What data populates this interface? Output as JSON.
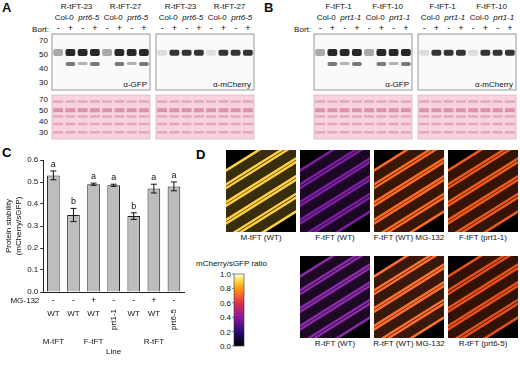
{
  "panel_letters": [
    "A",
    "B",
    "C",
    "D"
  ],
  "blots": [
    {
      "lines": [
        "R-tFT-23",
        "R-tFT-27"
      ],
      "genotypes": [
        "Col-0",
        "prt6-5"
      ],
      "treatment_label": "Bort:",
      "treatments": [
        "-",
        "+"
      ],
      "antibodies": [
        "α-GFP",
        "α-mCherry"
      ],
      "markers": [
        70,
        50,
        40,
        30
      ]
    },
    {
      "lines": [
        "F-tFT-1",
        "F-tFT-10"
      ],
      "genotypes": [
        "Col-0",
        "prt1-1"
      ],
      "treatment_label": "Bort:",
      "treatments": [
        "-",
        "+"
      ],
      "antibodies": [
        "α-GFP",
        "α-mCherry"
      ]
    }
  ],
  "chart_data": {
    "type": "bar",
    "categories": [
      "WT",
      "WT",
      "WT",
      "prt1-1",
      "WT",
      "WT",
      "prt6-5"
    ],
    "groups": [
      "M-tFT",
      "F-tFT",
      "F-tFT",
      "F-tFT",
      "R-tFT",
      "R-tFT",
      "R-tFT"
    ],
    "treatment_label": "MG-132",
    "treatments": [
      "-",
      "-",
      "+",
      "-",
      "-",
      "+",
      "-"
    ],
    "x_label": "Line",
    "y_label": "Protein stability (mCherry/sGFP)",
    "values": [
      0.53,
      0.35,
      0.49,
      0.485,
      0.345,
      0.47,
      0.48
    ],
    "errors": [
      0.02,
      0.03,
      0.005,
      0.005,
      0.015,
      0.02,
      0.02
    ],
    "significance": [
      "a",
      "b",
      "a",
      "a",
      "b",
      "a",
      "a"
    ],
    "color": "#bdbdbd",
    "ylim": [
      0,
      0.6
    ],
    "yticks": [
      {
        "value": 0,
        "label": "0.0"
      },
      0.1,
      0.2,
      0.3,
      0.4,
      0.5,
      0.6
    ],
    "grid": false
  },
  "images": {
    "labels": [
      "M-tFT (WT)",
      "F-tFT (WT)",
      "F-tFT (WT) MG-132",
      "F-tFT (prt1-1)",
      "R-tFT (WT)",
      "R-tFT (WT) MG-132",
      "R-tFT (prt6-5)"
    ],
    "colorbar": {
      "label": "mCherry/sGFP ratio",
      "lim": [
        0,
        1
      ],
      "ticks": [
        {
          "value": 0,
          "label": "0.0"
        },
        0.2,
        0.4,
        0.6,
        0.8,
        {
          "value": 1,
          "label": "1.0"
        }
      ]
    }
  }
}
